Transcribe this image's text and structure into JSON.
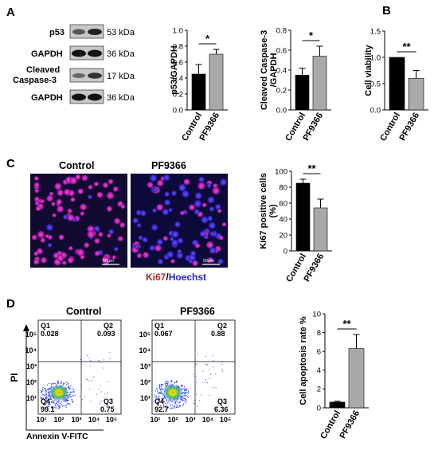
{
  "panels": {
    "A": "A",
    "B": "B",
    "C": "C",
    "D": "D"
  },
  "blots": [
    {
      "label": "p53",
      "kda": "53 kDa"
    },
    {
      "label": "GAPDH",
      "kda": "36 kDa"
    },
    {
      "label_line1": "Cleaved",
      "label_line2": "Caspase-3",
      "kda": "17 kDa"
    },
    {
      "label": "GAPDH",
      "kda": "36 kDa"
    }
  ],
  "microscopy": {
    "control_title": "Control",
    "pf_title": "PF9366",
    "scale_bar": "50μm",
    "legend_ki67": "Ki67",
    "legend_sep": "/",
    "legend_hoechst": "Hoechst"
  },
  "flow": {
    "control_title": "Control",
    "pf_title": "PF9366",
    "xlabel": "Annexin V-FITC",
    "ylabel": "PI",
    "control": {
      "Q1": "Q1",
      "Q1v": "0.028",
      "Q2": "Q2",
      "Q2v": "0.093",
      "Q3": "Q3",
      "Q3v": "0.75",
      "Q4": "Q4",
      "Q4v": "99.1"
    },
    "pf": {
      "Q1": "Q1",
      "Q1v": "0.067",
      "Q2": "Q2",
      "Q2v": "0.88",
      "Q3": "Q3",
      "Q3v": "6.36",
      "Q4": "Q4",
      "Q4v": "92.7"
    },
    "exp_labels": [
      "10⁰",
      "10¹",
      "10²",
      "10³",
      "10⁴",
      "10⁵"
    ]
  },
  "colors": {
    "control_bar": "#000000",
    "pf_bar": "#a9a9a9"
  },
  "chart_data": [
    {
      "type": "bar",
      "id": "p53",
      "categories": [
        "Control",
        "PF9366"
      ],
      "values": [
        0.45,
        0.7
      ],
      "errors": [
        0.12,
        0.06
      ],
      "ylabel": "p53/GAPDH",
      "ylim": [
        0,
        1.0
      ],
      "yticks": [
        "0.0",
        "0.2",
        "0.4",
        "0.6",
        "0.8",
        "1.0"
      ],
      "significance": "*"
    },
    {
      "type": "bar",
      "id": "caspase",
      "categories": [
        "Control",
        "PF9366"
      ],
      "values": [
        0.35,
        0.54
      ],
      "errors": [
        0.07,
        0.1
      ],
      "ylabel": "Cleaved Caspase-3",
      "ylabel2": "/GAPDH",
      "ylim": [
        0,
        0.8
      ],
      "yticks": [
        "0.0",
        "0.2",
        "0.4",
        "0.6",
        "0.8"
      ],
      "significance": "*"
    },
    {
      "type": "bar",
      "id": "viability",
      "categories": [
        "Control",
        "PF9366"
      ],
      "values": [
        1.0,
        0.6
      ],
      "errors": [
        0.0,
        0.15
      ],
      "ylabel": "Cell viability",
      "ylim": [
        0,
        1.5
      ],
      "yticks": [
        "0.0",
        "0.5",
        "1.0",
        "1.5"
      ],
      "significance": "**"
    },
    {
      "type": "bar",
      "id": "ki67",
      "categories": [
        "Control",
        "PF9366"
      ],
      "values": [
        85,
        54
      ],
      "errors": [
        5,
        11
      ],
      "ylabel": "Ki67 positive cells",
      "ylabel2": "(%)",
      "ylim": [
        0,
        100
      ],
      "yticks": [
        "0",
        "20",
        "40",
        "60",
        "80",
        "100"
      ],
      "significance": "**"
    },
    {
      "type": "bar",
      "id": "apoptosis",
      "categories": [
        "Control",
        "PF9366"
      ],
      "values": [
        0.6,
        6.3
      ],
      "errors": [
        0.1,
        1.5
      ],
      "ylabel": "Cell apoptosis rate %",
      "ylim": [
        0,
        10
      ],
      "yticks": [
        "0",
        "2",
        "4",
        "6",
        "8",
        "10"
      ],
      "significance": "**"
    }
  ]
}
